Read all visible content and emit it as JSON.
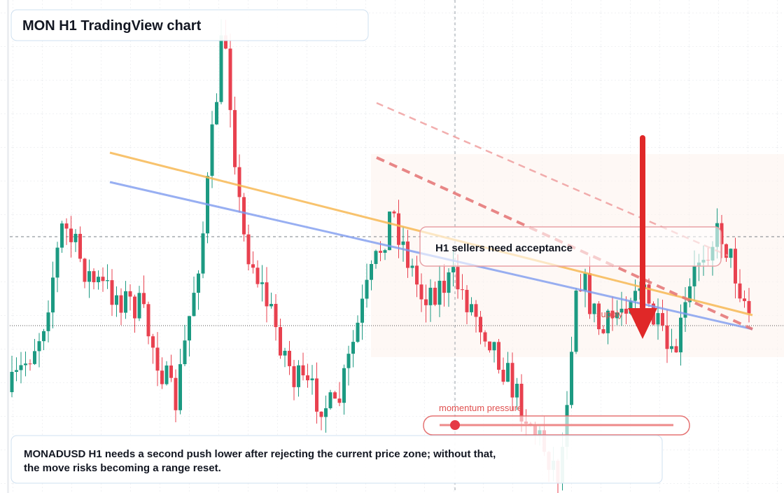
{
  "header": {
    "title": "MON H1 TradingView chart"
  },
  "callout": {
    "text": "H1 sellers need acceptance"
  },
  "zone_label": "supply",
  "momentum": {
    "label": "momentum pressure"
  },
  "summary": {
    "lines": [
      "MONADUSD H1 needs a second push lower after rejecting the current price zone; without that,",
      "the move risks becoming a range reset."
    ]
  }
}
